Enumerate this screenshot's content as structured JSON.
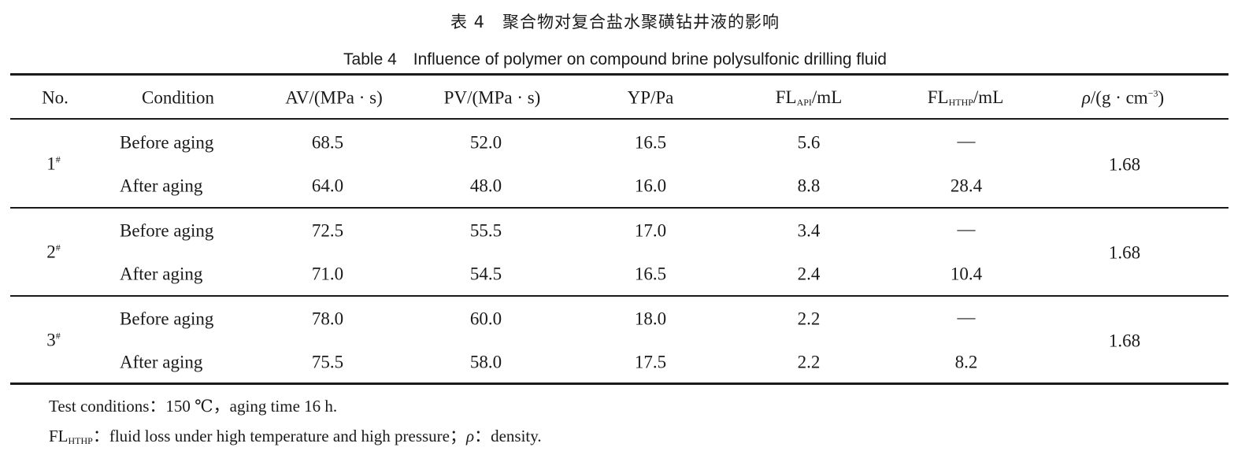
{
  "caption": {
    "zh": "表 4　聚合物对复合盐水聚磺钻井液的影响",
    "en": "Table 4　Influence of polymer on compound brine polysulfonic drilling fluid"
  },
  "table": {
    "headers": {
      "no": "No.",
      "condition": "Condition",
      "av": "AV/(MPa · s)",
      "pv": "PV/(MPa · s)",
      "yp": "YP/Pa",
      "fl_api_base": "FL",
      "fl_api_sub": "API",
      "fl_api_unit": "/mL",
      "fl_hthp_base": "FL",
      "fl_hthp_sub": "HTHP",
      "fl_hthp_unit": "/mL",
      "rho_symbol": "ρ",
      "rho_unit_pre": "/(g · cm",
      "rho_exp": "−3",
      "rho_unit_post": ")"
    },
    "groups": [
      {
        "no": "1",
        "no_mark": "#",
        "density": "1.68",
        "rows": [
          {
            "condition": "Before aging",
            "av": "68.5",
            "pv": "52.0",
            "yp": "16.5",
            "fl_api": "5.6",
            "fl_hthp": "—"
          },
          {
            "condition": "After aging",
            "av": "64.0",
            "pv": "48.0",
            "yp": "16.0",
            "fl_api": "8.8",
            "fl_hthp": "28.4"
          }
        ]
      },
      {
        "no": "2",
        "no_mark": "#",
        "density": "1.68",
        "rows": [
          {
            "condition": "Before aging",
            "av": "72.5",
            "pv": "55.5",
            "yp": "17.0",
            "fl_api": "3.4",
            "fl_hthp": "—"
          },
          {
            "condition": "After aging",
            "av": "71.0",
            "pv": "54.5",
            "yp": "16.5",
            "fl_api": "2.4",
            "fl_hthp": "10.4"
          }
        ]
      },
      {
        "no": "3",
        "no_mark": "#",
        "density": "1.68",
        "rows": [
          {
            "condition": "Before aging",
            "av": "78.0",
            "pv": "60.0",
            "yp": "18.0",
            "fl_api": "2.2",
            "fl_hthp": "—"
          },
          {
            "condition": "After aging",
            "av": "75.5",
            "pv": "58.0",
            "yp": "17.5",
            "fl_api": "2.2",
            "fl_hthp": "8.2"
          }
        ]
      }
    ]
  },
  "notes": {
    "line1": "Test conditions：150 ℃，aging time 16 h.",
    "line2_base": "FL",
    "line2_sub": "HTHP",
    "line2_mid": "：fluid loss under high temperature and high pressure；",
    "line2_rho": "ρ",
    "line2_end": "：density."
  }
}
